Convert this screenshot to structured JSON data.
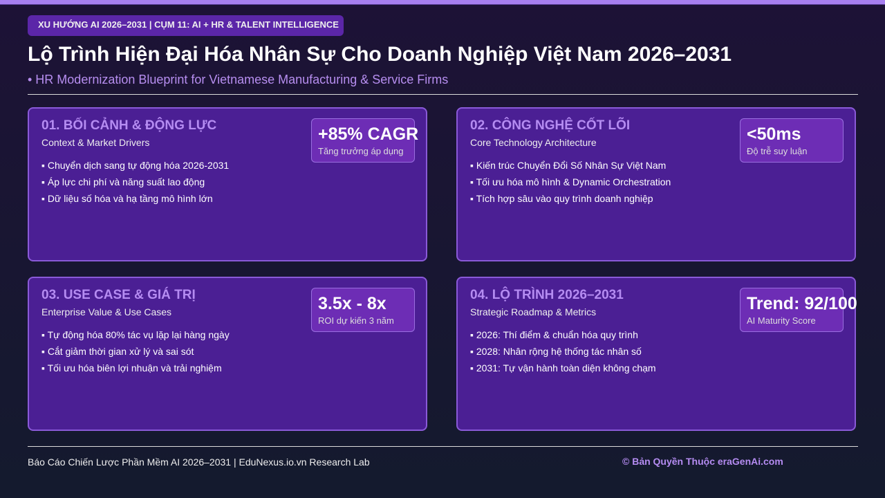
{
  "header": {
    "tag": "XU HƯỚNG AI 2026–2031 | CỤM 11: AI + HR & TALENT INTELLIGENCE",
    "title": "Lộ Trình Hiện Đại Hóa Nhân Sự Cho Doanh Nghiệp Việt Nam 2026–2031",
    "subtitle": "• HR Modernization Blueprint for Vietnamese Manufacturing & Service Firms"
  },
  "cards": [
    {
      "title": "01. BỐI CẢNH & ĐỘNG LỰC",
      "subtitle": "Context & Market Drivers",
      "metric": "+85% CAGR",
      "metric_label": "Tăng trưởng áp dụng",
      "bullets": [
        "▪ Chuyển dịch sang tự động hóa 2026-2031",
        "▪ Áp lực chi phí và năng suất lao động",
        "▪ Dữ liệu số hóa và hạ tầng mô hình lớn"
      ]
    },
    {
      "title": "02. CÔNG NGHỆ CỐT LÕI",
      "subtitle": "Core Technology Architecture",
      "metric": "<50ms",
      "metric_label": "Độ trễ suy luận",
      "bullets": [
        "▪ Kiến trúc Chuyển Đổi Số Nhân Sự Việt Nam",
        "▪ Tối ưu hóa mô hình & Dynamic Orchestration",
        "▪ Tích hợp sâu vào quy trình doanh nghiệp"
      ]
    },
    {
      "title": "03. USE CASE & GIÁ TRỊ",
      "subtitle": "Enterprise Value & Use Cases",
      "metric": "3.5x - 8x",
      "metric_label": "ROI dự kiến 3 năm",
      "bullets": [
        "▪ Tự động hóa 80% tác vụ lặp lại hàng ngày",
        "▪ Cắt giảm thời gian xử lý và sai sót",
        "▪ Tối ưu hóa biên lợi nhuận và trải nghiệm"
      ]
    },
    {
      "title": "04. LỘ TRÌNH 2026–2031",
      "subtitle": "Strategic Roadmap & Metrics",
      "metric": "Trend: 92/100",
      "metric_label": "AI Maturity Score",
      "bullets": [
        "▪ 2026: Thí điểm & chuẩn hóa quy trình",
        "▪ 2028: Nhân rộng hệ thống tác nhân số",
        "▪ 2031: Tự vận hành toàn diện không chạm"
      ]
    }
  ],
  "footer": {
    "left": "Báo Cáo Chiến Lược Phần Mềm AI 2026–2031 | EduNexus.io.vn Research Lab",
    "right": "© Bản Quyền Thuộc eraGenAi.com"
  }
}
